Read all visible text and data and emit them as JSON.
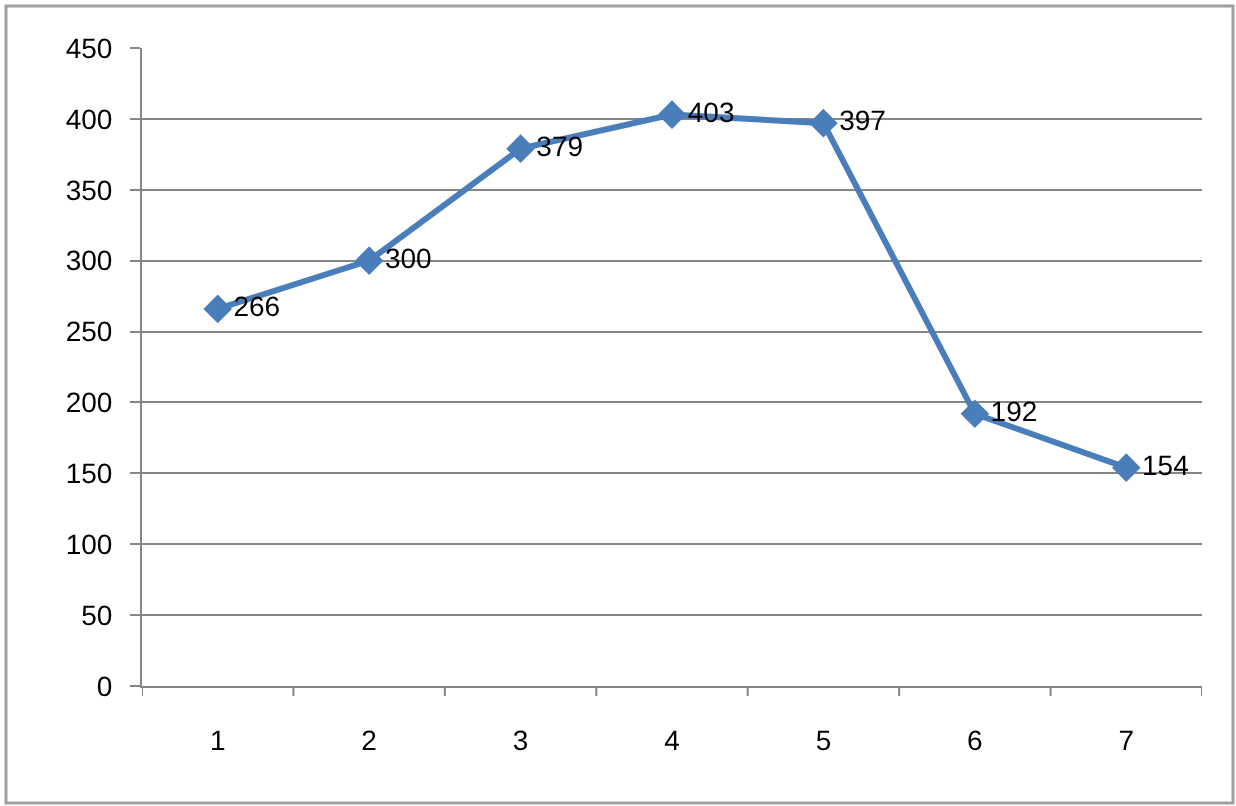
{
  "chart_data": {
    "type": "line",
    "categories": [
      "1",
      "2",
      "3",
      "4",
      "5",
      "6",
      "7"
    ],
    "series": [
      {
        "color": "#4a7ebb",
        "values": [
          266,
          300,
          379,
          403,
          397,
          192,
          154
        ]
      }
    ],
    "ylim": [
      0,
      450
    ],
    "yticks": [
      0,
      50,
      100,
      150,
      200,
      250,
      300,
      350,
      400,
      450
    ],
    "grid": "y",
    "marker": "diamond",
    "line_style": "solid",
    "data_labels": true
  }
}
